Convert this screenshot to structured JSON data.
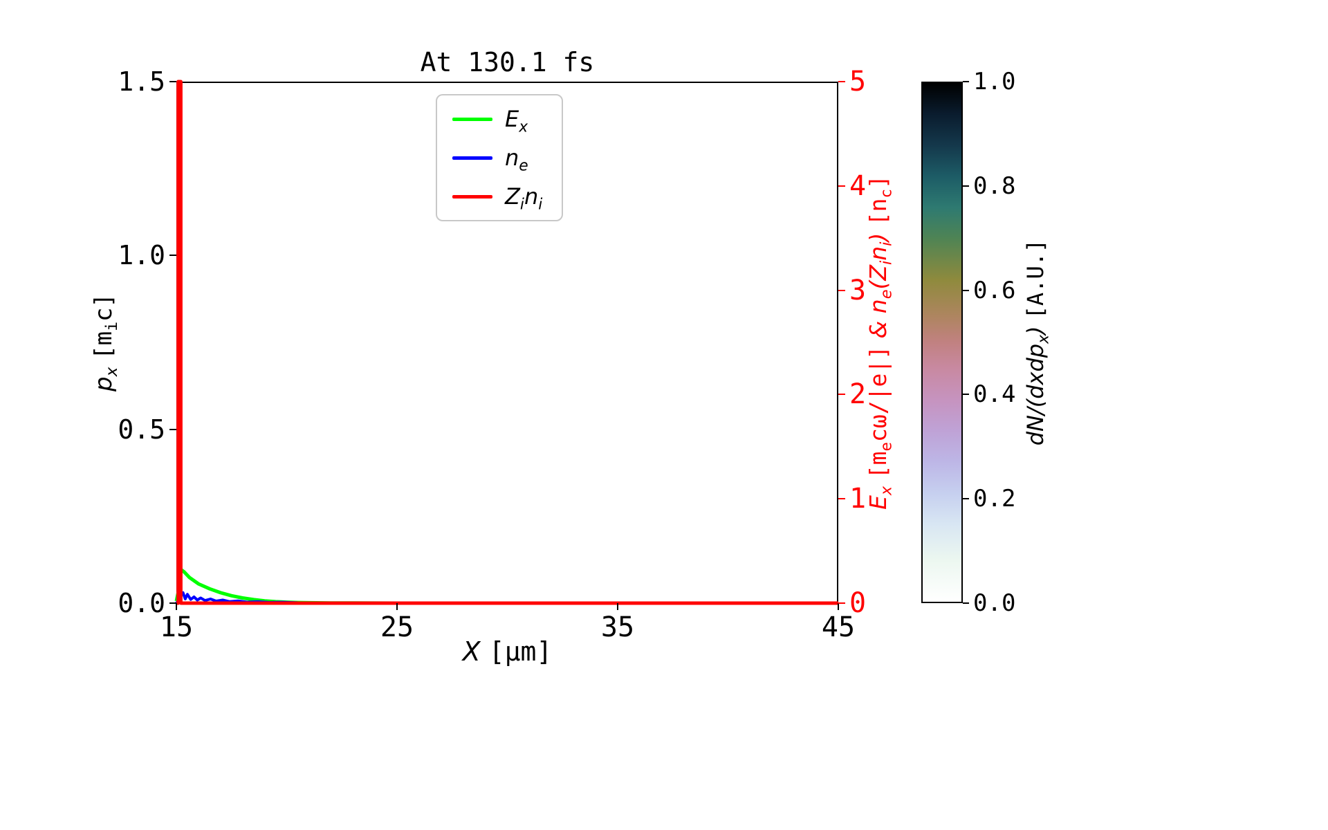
{
  "chart_data": {
    "type": "line",
    "title": "At 130.1 fs",
    "xlabel": "X [μm]",
    "xlim": [
      15,
      45
    ],
    "x_ticks": [
      "15",
      "25",
      "35",
      "45"
    ],
    "left_axis": {
      "label": "p_x [m_ic]",
      "lim": [
        0.0,
        1.5
      ],
      "ticks": [
        "0.0",
        "0.5",
        "1.0",
        "1.5"
      ],
      "color": "#000000"
    },
    "right_axis": {
      "label": "E_x [m_ecω/|e|] & n_e(Z_in_i) [n_c]",
      "lim": [
        0,
        5
      ],
      "ticks": [
        "0",
        "1",
        "2",
        "3",
        "4",
        "5"
      ],
      "color": "#ff0000"
    },
    "grid": false,
    "legend": {
      "position": "upper center",
      "entries": [
        "E_x",
        "n_e",
        "Z_in_i"
      ]
    },
    "series": [
      {
        "name": "E_x",
        "color": "#00ff00",
        "width": 5,
        "axis": "right",
        "points": [
          [
            15.0,
            0.02
          ],
          [
            15.1,
            0.12
          ],
          [
            15.15,
            0.33
          ],
          [
            15.35,
            0.3
          ],
          [
            15.6,
            0.245
          ],
          [
            16.0,
            0.185
          ],
          [
            16.5,
            0.138
          ],
          [
            17.0,
            0.1
          ],
          [
            17.5,
            0.071
          ],
          [
            18.0,
            0.05
          ],
          [
            18.5,
            0.034
          ],
          [
            19.0,
            0.022
          ],
          [
            19.5,
            0.014
          ],
          [
            20.0,
            0.009
          ],
          [
            20.5,
            0.006
          ],
          [
            21.0,
            0.004
          ],
          [
            22.0,
            0.002
          ],
          [
            23.0,
            0.001
          ],
          [
            25.0,
            0.0
          ],
          [
            45.0,
            0.0
          ]
        ]
      },
      {
        "name": "n_e",
        "color": "#0000ff",
        "width": 4,
        "axis": "right",
        "points": [
          [
            15.0,
            0.0
          ],
          [
            15.07,
            0.02
          ],
          [
            15.12,
            0.22
          ],
          [
            15.2,
            0.07
          ],
          [
            15.3,
            0.1
          ],
          [
            15.4,
            0.04
          ],
          [
            15.5,
            0.085
          ],
          [
            15.65,
            0.035
          ],
          [
            15.8,
            0.06
          ],
          [
            15.95,
            0.03
          ],
          [
            16.1,
            0.05
          ],
          [
            16.3,
            0.025
          ],
          [
            16.55,
            0.04
          ],
          [
            16.8,
            0.02
          ],
          [
            17.1,
            0.03
          ],
          [
            17.4,
            0.015
          ],
          [
            17.8,
            0.022
          ],
          [
            18.2,
            0.01
          ],
          [
            18.7,
            0.014
          ],
          [
            19.2,
            0.007
          ],
          [
            19.8,
            0.009
          ],
          [
            20.5,
            0.004
          ],
          [
            21.5,
            0.003
          ],
          [
            23.0,
            0.001
          ],
          [
            45.0,
            0.0
          ]
        ]
      },
      {
        "name": "Z_in_i",
        "color": "#ff0000",
        "width": 5,
        "axis": "right",
        "points": [
          [
            15.0,
            0.0
          ],
          [
            15.08,
            0.0
          ],
          [
            15.08,
            5.0
          ],
          [
            15.2,
            5.0
          ],
          [
            15.2,
            0.0
          ],
          [
            45.0,
            0.0
          ]
        ]
      }
    ],
    "colorbar": {
      "label": "dN/(dxdp_x) [A.U.]",
      "lim": [
        0.0,
        1.0
      ],
      "ticks": [
        "0.0",
        "0.2",
        "0.4",
        "0.6",
        "0.8",
        "1.0"
      ],
      "gradient": [
        {
          "at": 0.0,
          "color": "#ffffff"
        },
        {
          "at": 0.08,
          "color": "#ecf7f0"
        },
        {
          "at": 0.15,
          "color": "#d8e6f3"
        },
        {
          "at": 0.21,
          "color": "#c6cfef"
        },
        {
          "at": 0.27,
          "color": "#bdb6e6"
        },
        {
          "at": 0.33,
          "color": "#bfa2d6"
        },
        {
          "at": 0.39,
          "color": "#c693bf"
        },
        {
          "at": 0.45,
          "color": "#c889a1"
        },
        {
          "at": 0.5,
          "color": "#c18181"
        },
        {
          "at": 0.55,
          "color": "#ae8560"
        },
        {
          "at": 0.62,
          "color": "#8f8a3d"
        },
        {
          "at": 0.7,
          "color": "#4f8454"
        },
        {
          "at": 0.76,
          "color": "#2e7a71"
        },
        {
          "at": 0.82,
          "color": "#1d5c66"
        },
        {
          "at": 0.88,
          "color": "#14384b"
        },
        {
          "at": 0.94,
          "color": "#0a1c2e"
        },
        {
          "at": 1.0,
          "color": "#000000"
        }
      ]
    }
  }
}
